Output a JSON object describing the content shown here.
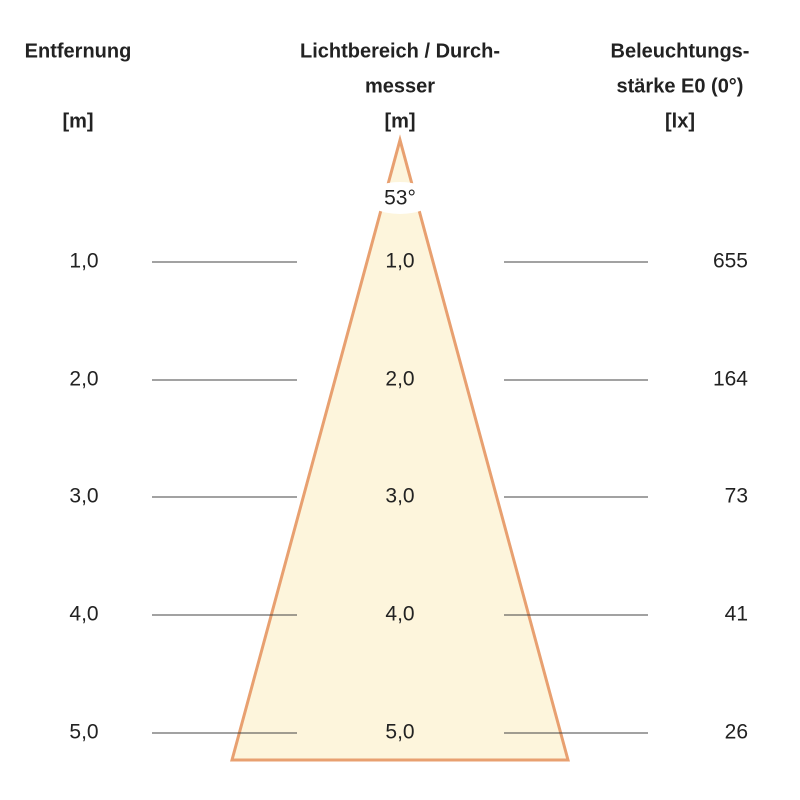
{
  "header": {
    "distance": {
      "lines": [
        "Entfernung"
      ],
      "unit": "[m]"
    },
    "diameter": {
      "lines": [
        "Lichtbereich / Durch-",
        "messer"
      ],
      "unit": "[m]"
    },
    "illuminance": {
      "lines": [
        "Beleuchtungs-",
        "stärke E0 (0°)"
      ],
      "unit": "[lx]"
    }
  },
  "beam_angle": "53°",
  "rows": [
    {
      "distance": "1,0",
      "diameter": "1,0",
      "illuminance": "655"
    },
    {
      "distance": "2,0",
      "diameter": "2,0",
      "illuminance": "164"
    },
    {
      "distance": "3,0",
      "diameter": "3,0",
      "illuminance": "73"
    },
    {
      "distance": "4,0",
      "diameter": "4,0",
      "illuminance": "41"
    },
    {
      "distance": "5,0",
      "diameter": "5,0",
      "illuminance": "26"
    }
  ]
}
